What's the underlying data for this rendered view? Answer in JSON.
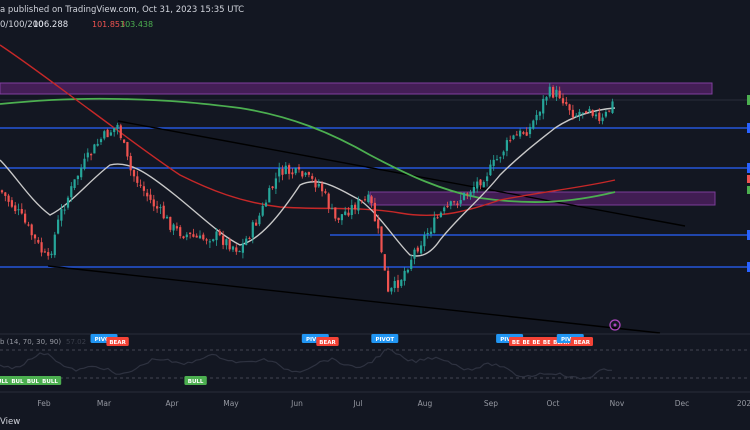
{
  "header": {
    "publish_text": "a published on TradingView.com, Oct 31, 2023 15:35 UTC",
    "ma_label": "0/100/200",
    "ma_value_1": "106.288",
    "ma_value_2": "101.853",
    "ma_value_3": "103.438",
    "ma_value_1_color": "#e0e3eb",
    "ma_value_2_color": "#ef5350",
    "ma_value_3_color": "#4caf50"
  },
  "osc": {
    "label": "b (14, 70, 30, 90)",
    "label_faint": "57.02"
  },
  "footer": {
    "brand": "View"
  },
  "colors": {
    "background": "#131722",
    "up": "#26a69a",
    "down": "#ef5350",
    "ma_fast": "#c8c8c8",
    "ma_mid": "#c62828",
    "ma_slow": "#4caf50",
    "level_line": "#2962ff",
    "zone_fill": "#4a1f5c",
    "zone_border": "#8e44ad",
    "trendline": "#000000",
    "pivot_blue": "#2196f3",
    "bear_red": "#f44336",
    "bull_green": "#4caf50"
  },
  "chart_data": {
    "type": "candlestick",
    "x_axis_labels": [
      "Feb",
      "Mar",
      "Apr",
      "May",
      "Jun",
      "Jul",
      "Aug",
      "Sep",
      "Oct",
      "Nov",
      "Dec",
      "202"
    ],
    "markers": [
      {
        "label": "PIVOT",
        "kind": "pivot",
        "pane": "osc",
        "month_index": 1.0
      },
      {
        "label": "BEAR",
        "kind": "bear",
        "pane": "osc",
        "month_index": 1.2
      },
      {
        "label": "BULL",
        "kind": "bull",
        "pane": "osc",
        "month_index": -0.7
      },
      {
        "label": "BULL",
        "kind": "bull",
        "pane": "osc",
        "month_index": -0.4
      },
      {
        "label": "BULL",
        "kind": "bull",
        "pane": "osc",
        "month_index": -0.15
      },
      {
        "label": "BULL",
        "kind": "bull",
        "pane": "osc",
        "month_index": 0.1
      },
      {
        "label": "BULL",
        "kind": "bull",
        "pane": "osc",
        "month_index": 2.4
      },
      {
        "label": "PIVOT",
        "kind": "pivot",
        "pane": "osc",
        "month_index": 4.3
      },
      {
        "label": "BEAR",
        "kind": "bear",
        "pane": "osc",
        "month_index": 4.5
      },
      {
        "label": "PIVOT",
        "kind": "pivot",
        "pane": "osc",
        "month_index": 5.4
      },
      {
        "label": "PIVOT",
        "kind": "pivot",
        "pane": "osc",
        "month_index": 7.3
      },
      {
        "label": "BEAR",
        "kind": "bear",
        "pane": "osc",
        "month_index": 7.47
      },
      {
        "label": "BEAR",
        "kind": "bear",
        "pane": "osc",
        "month_index": 7.64
      },
      {
        "label": "BEAR",
        "kind": "bear",
        "pane": "osc",
        "month_index": 7.8
      },
      {
        "label": "BEAR",
        "kind": "bear",
        "pane": "osc",
        "month_index": 7.97
      },
      {
        "label": "BEAR",
        "kind": "bear",
        "pane": "osc",
        "month_index": 8.13
      },
      {
        "label": "PIVOT",
        "kind": "pivot",
        "pane": "osc",
        "month_index": 8.27
      },
      {
        "label": "BEAR",
        "kind": "bear",
        "pane": "osc",
        "month_index": 8.45
      }
    ],
    "series": [
      {
        "name": "",
        "kind": "candles"
      },
      {
        "name": "",
        "kind": "ma_fast"
      },
      {
        "name": "",
        "kind": "ma_mid"
      },
      {
        "name": "",
        "kind": "ma_slow"
      }
    ]
  }
}
